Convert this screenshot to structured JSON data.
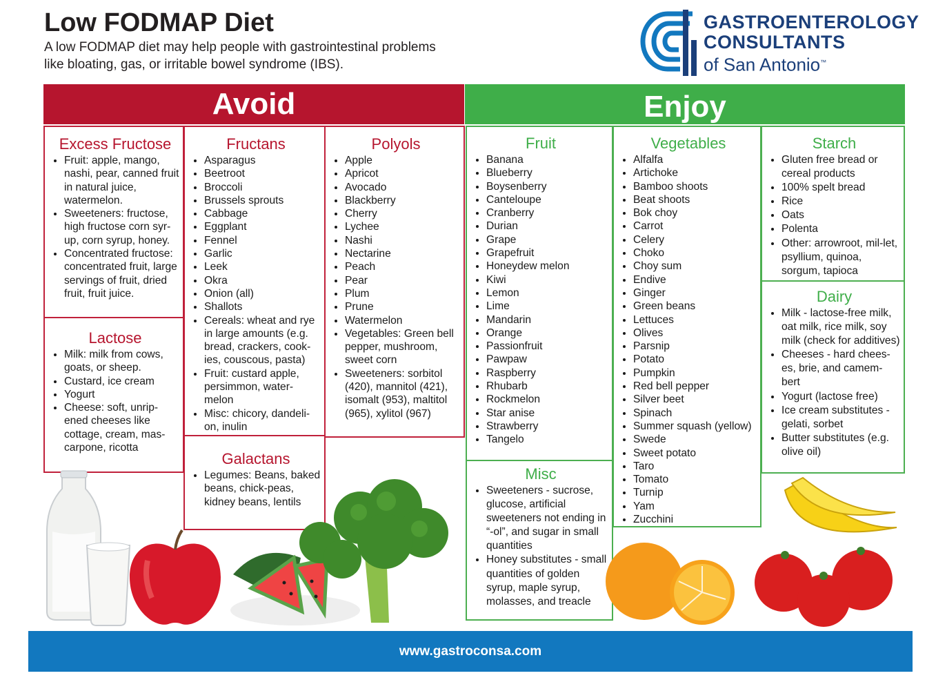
{
  "header": {
    "title": "Low FODMAP Diet",
    "subtitle_line1": "A low FODMAP diet may help people with gastrointestinal problems",
    "subtitle_line2": "like bloating, gas, or irritable bowel syndrome (IBS)."
  },
  "logo": {
    "line1": "GASTROENTEROLOGY",
    "line2": "CONSULTANTS",
    "line3": "of San Antonio",
    "tm": "™",
    "color": "#1b3f7a"
  },
  "avoid": {
    "label": "Avoid",
    "color": "#b6152e",
    "excess_fructose": {
      "title": "Excess Fructose",
      "items": [
        "Fruit: apple, mango, nashi, pear, canned fruit in natural juice, watermelon.",
        "Sweeteners: fructose, high fructose corn syr-up, corn syrup, honey.",
        "Concentrated fructose: concentrated fruit, large servings of fruit, dried fruit, fruit juice."
      ]
    },
    "lactose": {
      "title": "Lactose",
      "items": [
        "Milk: milk from cows, goats, or sheep.",
        "Custard, ice cream",
        "Yogurt",
        "Cheese: soft, unrip-ened cheeses like cottage, cream, mas-carpone, ricotta"
      ]
    },
    "fructans": {
      "title": "Fructans",
      "items": [
        "Asparagus",
        "Beetroot",
        "Broccoli",
        "Brussels sprouts",
        "Cabbage",
        "Eggplant",
        "Fennel",
        "Garlic",
        "Leek",
        "Okra",
        "Onion (all)",
        "Shallots",
        "Cereals: wheat and rye in large amounts (e.g. bread, crackers, cook-ies, couscous, pasta)",
        "Fruit: custard apple, persimmon, water-melon",
        "Misc: chicory, dandeli-on, inulin"
      ]
    },
    "galactans": {
      "title": "Galactans",
      "items": [
        "Legumes: Beans, baked beans, chick-peas, kidney beans, lentils"
      ]
    },
    "polyols": {
      "title": "Polyols",
      "items": [
        "Apple",
        "Apricot",
        "Avocado",
        "Blackberry",
        "Cherry",
        "Lychee",
        "Nashi",
        "Nectarine",
        "Peach",
        "Pear",
        "Plum",
        "Prune",
        "Watermelon",
        "Vegetables: Green bell pepper, mushroom, sweet corn",
        "Sweeteners: sorbitol (420), mannitol (421), isomalt (953), maltitol (965), xylitol (967)"
      ]
    }
  },
  "enjoy": {
    "label": "Enjoy",
    "color": "#3fae49",
    "fruit": {
      "title": "Fruit",
      "items": [
        "Banana",
        "Blueberry",
        "Boysenberry",
        "Canteloupe",
        "Cranberry",
        "Durian",
        "Grape",
        "Grapefruit",
        "Honeydew melon",
        "Kiwi",
        "Lemon",
        "Lime",
        "Mandarin",
        "Orange",
        "Passionfruit",
        "Pawpaw",
        "Raspberry",
        "Rhubarb",
        "Rockmelon",
        "Star anise",
        "Strawberry",
        "Tangelo"
      ]
    },
    "misc": {
      "title": "Misc",
      "items": [
        "Sweeteners - sucrose, glucose, artificial sweeteners not ending in “-ol”, and sugar in small quantities",
        "Honey substitutes - small quantities of golden syrup, maple syrup, molasses, and treacle"
      ]
    },
    "vegetables": {
      "title": "Vegetables",
      "items": [
        "Alfalfa",
        "Artichoke",
        "Bamboo shoots",
        "Beat shoots",
        "Bok choy",
        "Carrot",
        "Celery",
        "Choko",
        "Choy sum",
        "Endive",
        "Ginger",
        "Green beans",
        "Lettuces",
        "Olives",
        "Parsnip",
        "Potato",
        "Pumpkin",
        "Red bell pepper",
        "Silver beet",
        "Spinach",
        "Summer squash (yellow)",
        "Swede",
        "Sweet potato",
        "Taro",
        "Tomato",
        "Turnip",
        "Yam",
        "Zucchini"
      ]
    },
    "starch": {
      "title": "Starch",
      "items": [
        "Gluten free bread or cereal products",
        "100% spelt bread",
        "Rice",
        "Oats",
        "Polenta",
        "Other: arrowroot, mil-let, psyllium, quinoa, sorgum, tapioca"
      ]
    },
    "dairy": {
      "title": "Dairy",
      "items": [
        "Milk - lactose-free milk, oat milk, rice milk, soy milk (check for additives)",
        "Cheeses - hard chees-es, brie, and camem-bert",
        "Yogurt (lactose free)",
        "Ice cream substitutes - gelati, sorbet",
        "Butter substitutes (e.g. olive oil)"
      ]
    }
  },
  "footer": {
    "url": "www.gastroconsa.com",
    "color": "#1278bf"
  }
}
